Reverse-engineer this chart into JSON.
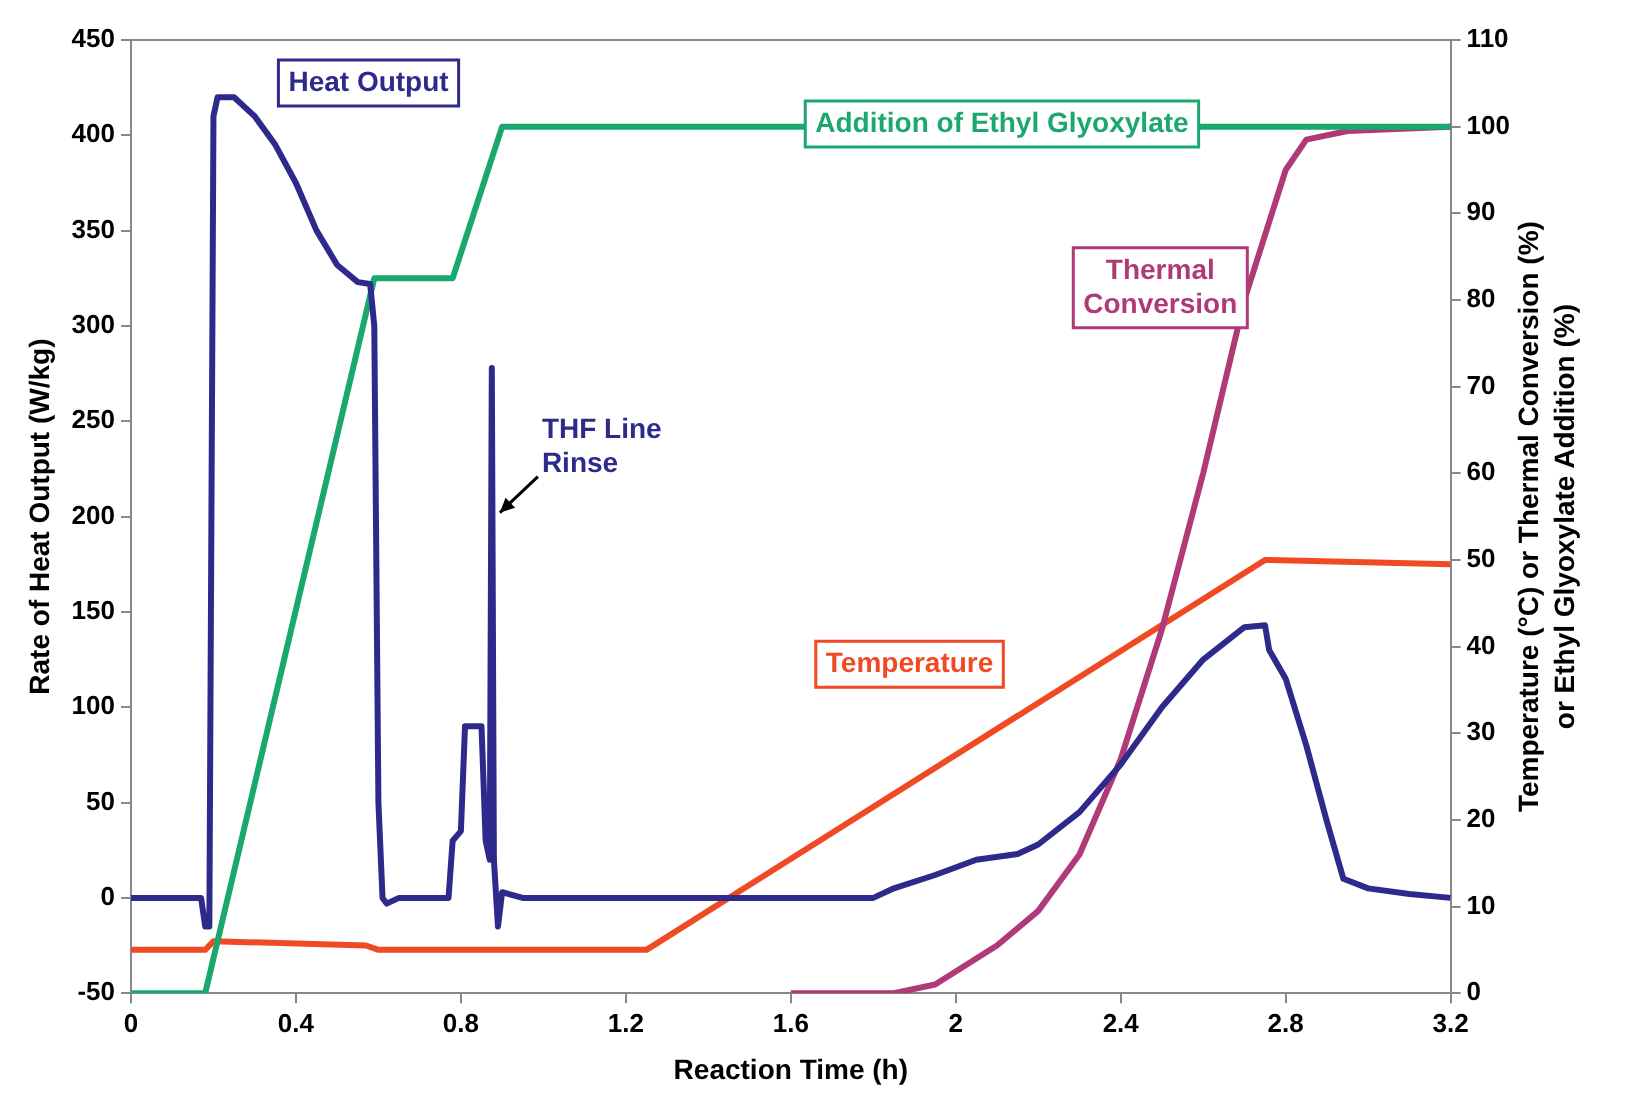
{
  "chart_data": {
    "type": "line",
    "xlabel": "Reaction Time (h)",
    "ylabel": "Rate of Heat Output (W/kg)",
    "y2label": "Temperature (°C) or Thermal Conversion (%) or Ethyl Glyoxylate Addition (%)",
    "xlim": [
      0,
      3.2
    ],
    "xticks": [
      0,
      0.4,
      0.8,
      1.2,
      1.6,
      2,
      2.4,
      2.8,
      3.2
    ],
    "ylim": [
      -50,
      450
    ],
    "yticks": [
      -50,
      0,
      50,
      100,
      150,
      200,
      250,
      300,
      350,
      400,
      450
    ],
    "y2lim": [
      0,
      110
    ],
    "y2ticks": [
      0,
      10,
      20,
      30,
      40,
      50,
      60,
      70,
      80,
      90,
      100,
      110
    ],
    "grid": false,
    "legend": false,
    "marker": "none",
    "line_style": "solid",
    "series": [
      {
        "name": "Heat Output",
        "color": "#2e2a8c",
        "x": [
          0,
          0.17,
          0.18,
          0.19,
          0.2,
          0.21,
          0.25,
          0.3,
          0.35,
          0.4,
          0.45,
          0.5,
          0.55,
          0.58,
          0.59,
          0.6,
          0.61,
          0.62,
          0.65,
          0.77,
          0.78,
          0.8,
          0.81,
          0.85,
          0.86,
          0.87,
          0.875,
          0.88,
          0.89,
          0.9,
          0.95,
          1.8,
          1.85,
          1.95,
          2.05,
          2.15,
          2.2,
          2.3,
          2.4,
          2.5,
          2.6,
          2.7,
          2.75,
          2.76,
          2.8,
          2.85,
          2.9,
          2.94,
          3,
          3.1,
          3.2
        ],
        "values": [
          0,
          0,
          -15,
          -15,
          410,
          420,
          420,
          410,
          395,
          375,
          350,
          332,
          323,
          322,
          300,
          50,
          0,
          -3,
          0,
          0,
          30,
          35,
          90,
          90,
          30,
          20,
          278,
          20,
          -15,
          3,
          0,
          0,
          5,
          12,
          20,
          23,
          28,
          45,
          70,
          100,
          125,
          142,
          143,
          130,
          115,
          80,
          40,
          10,
          5,
          2,
          0
        ]
      },
      {
        "name": "Addition of Ethyl Glyoxylate",
        "color": "#1aa86e",
        "axis": "y2",
        "x": [
          0,
          0.18,
          0.59,
          0.78,
          0.9,
          3.2
        ],
        "values": [
          0,
          0,
          82.5,
          82.5,
          100,
          100
        ]
      },
      {
        "name": "Thermal Conversion",
        "color": "#b03a78",
        "axis": "y2",
        "x": [
          1.6,
          1.85,
          1.95,
          2,
          2.1,
          2.2,
          2.3,
          2.4,
          2.5,
          2.6,
          2.7,
          2.8,
          2.85,
          2.95,
          3.2
        ],
        "values": [
          0,
          0,
          1,
          2.5,
          5.5,
          9.5,
          16,
          27,
          42,
          60,
          80,
          95,
          98.5,
          99.5,
          100
        ]
      },
      {
        "name": "Temperature",
        "color": "#f04a24",
        "axis": "y2",
        "x": [
          0,
          0.18,
          0.2,
          0.57,
          0.6,
          1.25,
          2.75,
          3.2
        ],
        "values": [
          5,
          5,
          6,
          5.5,
          5,
          5,
          50,
          49.5
        ]
      }
    ],
    "annotations": [
      {
        "text": "THF Line Rinse",
        "x": 0.88,
        "y": 200
      }
    ]
  }
}
